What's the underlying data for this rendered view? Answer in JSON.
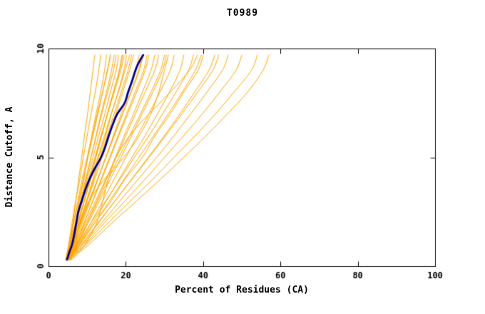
{
  "chart_data": {
    "type": "line",
    "title": "T0989",
    "xlabel": "Percent of Residues (CA)",
    "ylabel": "Distance Cutoff, A",
    "xlim": [
      0,
      100
    ],
    "ylim": [
      0,
      10
    ],
    "xticks": [
      0,
      20,
      40,
      60,
      80,
      100
    ],
    "yticks": [
      0,
      5,
      10
    ],
    "grid": false,
    "legend": "none",
    "background_color": "#FFFFFF",
    "axis_color": "#000000",
    "model_color": "#FFA500",
    "highlight_color": "#00008B",
    "y_samples": [
      0.3,
      1,
      2,
      3,
      4,
      5,
      6,
      7,
      8,
      9,
      9.7
    ],
    "models": [
      [
        5.0,
        5.6,
        6.3,
        7.1,
        7.8,
        8.6,
        9.3,
        10.1,
        10.8,
        11.5,
        12.0
      ],
      [
        4.5,
        5.2,
        6.1,
        7.0,
        8.1,
        9.0,
        10.0,
        11.0,
        12.1,
        13.0,
        13.5
      ],
      [
        5.0,
        6.0,
        7.1,
        8.0,
        9.2,
        10.1,
        11.2,
        12.3,
        13.5,
        14.5,
        15.0
      ],
      [
        4.8,
        5.5,
        6.6,
        7.8,
        9.0,
        10.2,
        11.5,
        12.8,
        14.0,
        15.2,
        16.0
      ],
      [
        5.2,
        6.0,
        7.2,
        8.5,
        9.8,
        11.0,
        12.3,
        13.6,
        15.0,
        16.3,
        17.0
      ],
      [
        4.5,
        5.5,
        7.0,
        8.5,
        10.0,
        11.5,
        13.0,
        14.6,
        16.0,
        17.5,
        18.1
      ],
      [
        5.0,
        6.2,
        7.8,
        9.3,
        10.8,
        12.3,
        13.8,
        15.3,
        16.8,
        18.3,
        19.0
      ],
      [
        5.5,
        6.6,
        8.1,
        9.8,
        11.5,
        13.0,
        14.8,
        16.3,
        18.0,
        19.5,
        20.2
      ],
      [
        4.7,
        6.0,
        7.5,
        9.2,
        11.0,
        12.8,
        14.5,
        16.2,
        18.1,
        19.8,
        21.0
      ],
      [
        5.0,
        6.5,
        8.2,
        10.0,
        12.0,
        13.8,
        15.6,
        17.4,
        19.2,
        21.0,
        22.0
      ],
      [
        5.3,
        6.8,
        8.8,
        10.8,
        12.8,
        14.8,
        16.8,
        18.8,
        20.8,
        22.5,
        23.5
      ],
      [
        4.6,
        6.2,
        8.3,
        10.5,
        12.7,
        14.9,
        17.0,
        19.2,
        21.4,
        23.5,
        24.5
      ],
      [
        5.0,
        7.0,
        9.2,
        11.5,
        13.8,
        16.0,
        18.2,
        20.5,
        22.8,
        25.0,
        26.0
      ],
      [
        5.5,
        7.5,
        10.0,
        12.5,
        15.0,
        17.3,
        19.6,
        22.0,
        24.3,
        26.5,
        27.5
      ],
      [
        4.8,
        7.0,
        9.6,
        12.2,
        14.8,
        17.5,
        20.0,
        22.5,
        25.0,
        27.5,
        28.5
      ],
      [
        5.2,
        7.5,
        10.3,
        13.2,
        16.0,
        18.8,
        21.5,
        24.2,
        27.0,
        29.5,
        30.5
      ],
      [
        5.0,
        7.8,
        11.0,
        14.0,
        17.0,
        20.0,
        23.0,
        26.0,
        28.8,
        31.5,
        32.5
      ],
      [
        5.5,
        8.0,
        11.5,
        15.0,
        18.3,
        21.6,
        25.0,
        28.2,
        31.3,
        34.0,
        35.0
      ],
      [
        4.7,
        7.5,
        11.0,
        14.8,
        18.5,
        22.2,
        26.0,
        29.5,
        33.0,
        36.2,
        37.5
      ],
      [
        5.0,
        8.0,
        12.0,
        16.2,
        19.8,
        24.3,
        27.6,
        31.5,
        35.0,
        38.7,
        40.0
      ],
      [
        5.5,
        8.8,
        13.0,
        17.2,
        21.5,
        25.8,
        30.0,
        34.0,
        37.8,
        41.5,
        43.0
      ],
      [
        5.0,
        9.0,
        13.8,
        18.5,
        23.2,
        28.0,
        32.5,
        36.8,
        41.0,
        45.0,
        46.5
      ],
      [
        5.3,
        9.5,
        14.5,
        19.8,
        25.0,
        30.0,
        35.0,
        39.8,
        44.3,
        48.5,
        50.0
      ],
      [
        5.0,
        9.8,
        15.5,
        21.2,
        27.0,
        32.5,
        38.0,
        43.2,
        48.0,
        52.5,
        54.0
      ],
      [
        5.5,
        10.5,
        16.5,
        22.8,
        29.0,
        35.0,
        40.8,
        46.3,
        51.5,
        55.5,
        57.0
      ],
      [
        4.4,
        5.3,
        6.4,
        7.6,
        8.7,
        10.0,
        11.3,
        12.6,
        14.0,
        15.3,
        16.0
      ],
      [
        4.9,
        5.8,
        7.0,
        8.3,
        9.6,
        11.0,
        12.4,
        13.8,
        15.3,
        16.8,
        17.5
      ],
      [
        5.1,
        6.3,
        7.7,
        9.2,
        10.7,
        12.2,
        13.7,
        15.2,
        16.8,
        18.4,
        19.2
      ],
      [
        4.6,
        5.7,
        7.2,
        8.8,
        10.4,
        12.0,
        13.6,
        15.3,
        17.0,
        18.7,
        19.6
      ],
      [
        5.4,
        6.6,
        8.3,
        10.0,
        11.7,
        13.4,
        15.2,
        17.0,
        18.8,
        20.6,
        21.5
      ],
      [
        4.8,
        6.4,
        8.5,
        10.6,
        12.7,
        14.8,
        17.0,
        19.2,
        21.3,
        23.3,
        24.2
      ],
      [
        5.6,
        7.2,
        9.3,
        11.4,
        13.6,
        15.8,
        18.0,
        20.2,
        22.4,
        24.6,
        25.5
      ],
      [
        5.0,
        7.3,
        10.0,
        12.8,
        15.5,
        18.2,
        21.0,
        23.8,
        26.5,
        29.0,
        30.0
      ],
      [
        5.2,
        8.2,
        12.0,
        15.8,
        19.6,
        23.4,
        27.2,
        31.0,
        34.6,
        38.0,
        39.5
      ],
      [
        4.9,
        8.5,
        12.8,
        17.2,
        21.6,
        26.0,
        30.3,
        34.5,
        38.6,
        42.5,
        44.0
      ],
      [
        6.0,
        9.5,
        12.5,
        14.0,
        15.5,
        17.5,
        21.0,
        26.0,
        31.5,
        36.5,
        38.5
      ],
      [
        5.8,
        7.0,
        8.0,
        10.5,
        14.5,
        19.5,
        23.5,
        26.5,
        28.5,
        30.0,
        31.0
      ]
    ],
    "highlight": [
      [
        4.8,
        0.3
      ],
      [
        5.3,
        0.6
      ],
      [
        6.1,
        1.0
      ],
      [
        6.7,
        1.5
      ],
      [
        7.2,
        2.0
      ],
      [
        7.7,
        2.5
      ],
      [
        8.6,
        3.0
      ],
      [
        9.5,
        3.5
      ],
      [
        10.6,
        4.0
      ],
      [
        12.0,
        4.5
      ],
      [
        13.6,
        5.0
      ],
      [
        14.7,
        5.5
      ],
      [
        15.6,
        6.0
      ],
      [
        16.6,
        6.5
      ],
      [
        17.8,
        7.0
      ],
      [
        19.7,
        7.5
      ],
      [
        20.6,
        8.0
      ],
      [
        21.6,
        8.5
      ],
      [
        22.5,
        9.0
      ],
      [
        23.2,
        9.3
      ],
      [
        24.5,
        9.7
      ]
    ]
  }
}
